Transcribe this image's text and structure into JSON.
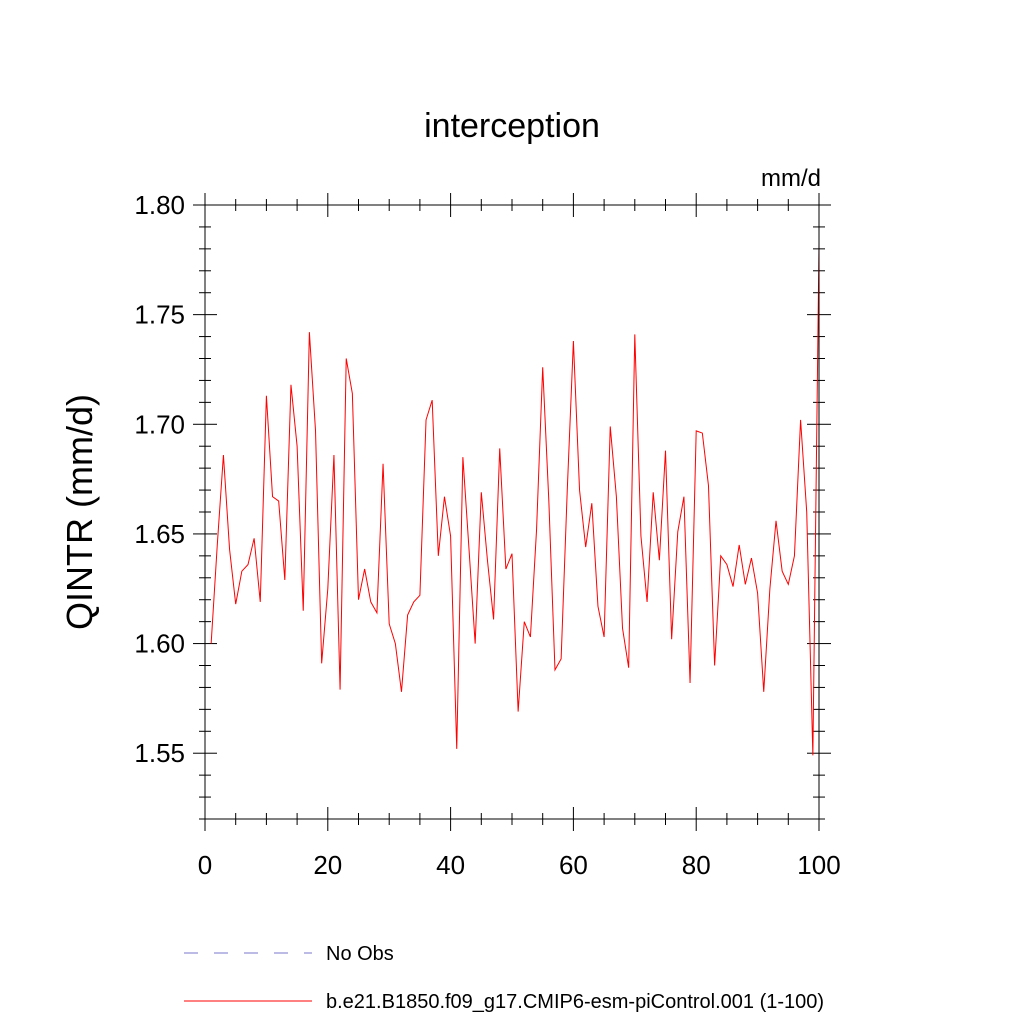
{
  "chart_data": {
    "type": "line",
    "title": "interception",
    "units": "mm/d",
    "ylabel": "QINTR  (mm/d)",
    "xlabel": "",
    "xlim": [
      0,
      100
    ],
    "ylim": [
      1.52,
      1.8
    ],
    "xticks": [
      0,
      20,
      40,
      60,
      80,
      100
    ],
    "xtick_labels": [
      "0",
      "20",
      "40",
      "60",
      "80",
      "100"
    ],
    "yticks": [
      1.55,
      1.6,
      1.65,
      1.7,
      1.75,
      1.8
    ],
    "ytick_labels": [
      "1.55",
      "1.60",
      "1.65",
      "1.70",
      "1.75",
      "1.80"
    ],
    "x": [
      1,
      2,
      3,
      4,
      5,
      6,
      7,
      8,
      9,
      10,
      11,
      12,
      13,
      14,
      15,
      16,
      17,
      18,
      19,
      20,
      21,
      22,
      23,
      24,
      25,
      26,
      27,
      28,
      29,
      30,
      31,
      32,
      33,
      34,
      35,
      36,
      37,
      38,
      39,
      40,
      41,
      42,
      43,
      44,
      45,
      46,
      47,
      48,
      49,
      50,
      51,
      52,
      53,
      54,
      55,
      56,
      57,
      58,
      59,
      60,
      61,
      62,
      63,
      64,
      65,
      66,
      67,
      68,
      69,
      70,
      71,
      72,
      73,
      74,
      75,
      76,
      77,
      78,
      79,
      80,
      81,
      82,
      83,
      84,
      85,
      86,
      87,
      88,
      89,
      90,
      91,
      92,
      93,
      94,
      95,
      96,
      97,
      98,
      99,
      100
    ],
    "series": [
      {
        "name": "b.e21.B1850.f09_g17.CMIP6-esm-piControl.001 (1-100)",
        "color": "#ff0000",
        "style": "solid",
        "values": [
          1.6,
          1.645,
          1.686,
          1.643,
          1.618,
          1.633,
          1.636,
          1.648,
          1.619,
          1.713,
          1.667,
          1.665,
          1.629,
          1.718,
          1.69,
          1.615,
          1.742,
          1.697,
          1.591,
          1.625,
          1.686,
          1.579,
          1.73,
          1.714,
          1.62,
          1.634,
          1.619,
          1.614,
          1.682,
          1.609,
          1.6,
          1.578,
          1.613,
          1.619,
          1.622,
          1.702,
          1.711,
          1.64,
          1.667,
          1.649,
          1.552,
          1.685,
          1.643,
          1.6,
          1.669,
          1.638,
          1.611,
          1.689,
          1.634,
          1.641,
          1.569,
          1.61,
          1.603,
          1.652,
          1.726,
          1.665,
          1.588,
          1.593,
          1.67,
          1.738,
          1.67,
          1.644,
          1.664,
          1.617,
          1.603,
          1.699,
          1.667,
          1.607,
          1.589,
          1.741,
          1.649,
          1.619,
          1.669,
          1.638,
          1.688,
          1.602,
          1.651,
          1.667,
          1.582,
          1.697,
          1.696,
          1.672,
          1.59,
          1.64,
          1.636,
          1.626,
          1.645,
          1.627,
          1.639,
          1.623,
          1.578,
          1.625,
          1.656,
          1.633,
          1.627,
          1.64,
          1.702,
          1.66,
          1.549,
          1.782
        ]
      }
    ],
    "legend": [
      {
        "label": "No Obs",
        "color": "#7777cc",
        "style": "dashed"
      },
      {
        "label": "b.e21.B1850.f09_g17.CMIP6-esm-piControl.001 (1-100)",
        "color": "#ff0000",
        "style": "solid"
      }
    ],
    "legend_position": "bottom-left"
  }
}
